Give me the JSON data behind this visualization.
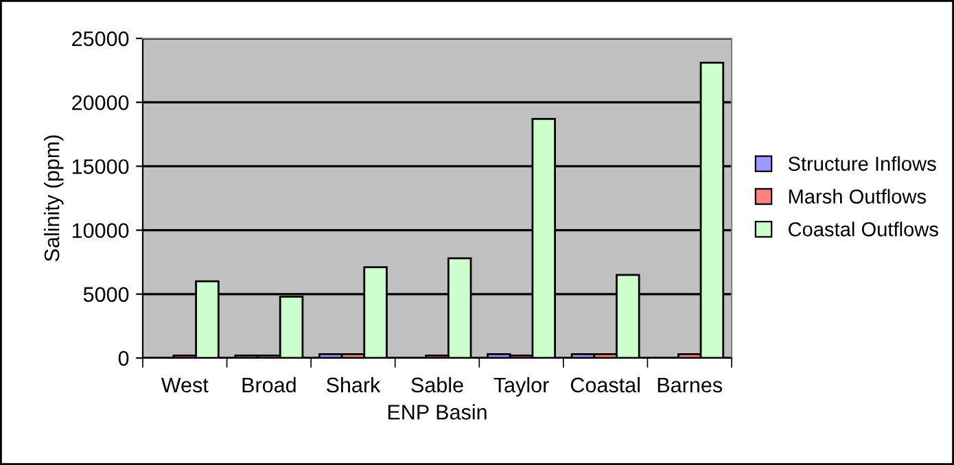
{
  "chart_data": {
    "type": "bar",
    "xlabel": "ENP Basin",
    "ylabel": "Salinity (ppm)",
    "categories": [
      "West",
      "Broad",
      "Shark",
      "Sable",
      "Taylor",
      "Coastal",
      "Barnes"
    ],
    "series": [
      {
        "name": "Structure Inflows",
        "color": "#9999ff",
        "values": [
          null,
          200,
          300,
          null,
          300,
          300,
          null
        ]
      },
      {
        "name": "Marsh Outflows",
        "color": "#ff8080",
        "values": [
          200,
          200,
          300,
          200,
          200,
          300,
          300
        ]
      },
      {
        "name": "Coastal Outflows",
        "color": "#ccffcc",
        "values": [
          6000,
          4800,
          7100,
          7800,
          18700,
          6500,
          23100
        ]
      }
    ],
    "ylim": [
      0,
      25000
    ],
    "yticks": [
      0,
      5000,
      10000,
      15000,
      20000,
      25000
    ],
    "grid": "y",
    "legend": "right"
  }
}
